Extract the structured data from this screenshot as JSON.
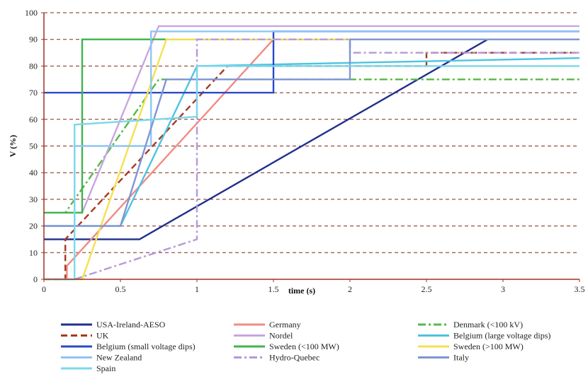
{
  "chart_data": {
    "type": "line",
    "title": "",
    "xlabel": "time (s)",
    "ylabel": "V (%)",
    "xlim": [
      0,
      3.5
    ],
    "ylim": [
      0,
      100
    ],
    "x_ticks": [
      0,
      0.5,
      1,
      1.5,
      2,
      2.5,
      3,
      3.5
    ],
    "x_tick_labels": [
      "0",
      "0.5",
      "1",
      "1.5",
      "2",
      "2.5",
      "3",
      "3.5"
    ],
    "y_ticks": [
      0,
      10,
      20,
      30,
      40,
      50,
      60,
      70,
      80,
      90,
      100
    ],
    "y_tick_labels": [
      "0",
      "10",
      "20",
      "30",
      "40",
      "50",
      "60",
      "70",
      "80",
      "90",
      "100"
    ],
    "grid": "horizontal dashed",
    "legend_position": "bottom",
    "series": [
      {
        "name": "USA-Ireland-AESO",
        "color": "#1f2f8c",
        "dash": "solid",
        "points": [
          [
            0,
            15
          ],
          [
            0.625,
            15
          ],
          [
            2.9,
            90
          ],
          [
            3.5,
            90
          ]
        ]
      },
      {
        "name": "Germany",
        "color": "#f28b82",
        "dash": "solid",
        "points": [
          [
            0.15,
            0
          ],
          [
            0.15,
            5
          ],
          [
            1.5,
            90
          ],
          [
            3.5,
            90
          ]
        ]
      },
      {
        "name": "Denmark (<100 kV)",
        "color": "#54b948",
        "dash": "dashdot",
        "points": [
          [
            0,
            25
          ],
          [
            0.14,
            25
          ],
          [
            0.75,
            75
          ],
          [
            3.5,
            75
          ]
        ]
      },
      {
        "name": "UK",
        "color": "#a63a1f",
        "dash": "dash",
        "points": [
          [
            0,
            0
          ],
          [
            0.14,
            0
          ],
          [
            0.14,
            15
          ],
          [
            1.2,
            80
          ],
          [
            2.5,
            80
          ],
          [
            2.5,
            85
          ],
          [
            3.5,
            85
          ]
        ]
      },
      {
        "name": "Nordel",
        "color": "#c8a6e0",
        "dash": "solid",
        "points": [
          [
            0,
            25
          ],
          [
            0.25,
            25
          ],
          [
            0.75,
            95
          ],
          [
            3.5,
            95
          ]
        ]
      },
      {
        "name": "Belgium (large voltage dips)",
        "color": "#4fc3e0",
        "dash": "solid",
        "points": [
          [
            0,
            20
          ],
          [
            0.5,
            20
          ],
          [
            1,
            80
          ],
          [
            3.5,
            83
          ]
        ]
      },
      {
        "name": "Belgium (small voltage dips)",
        "color": "#2a48c8",
        "dash": "solid",
        "points": [
          [
            0,
            70
          ],
          [
            1.5,
            70
          ],
          [
            1.5,
            93
          ],
          [
            3.5,
            93
          ]
        ]
      },
      {
        "name": "Sweden (<100 MW)",
        "color": "#3fb34f",
        "dash": "solid",
        "points": [
          [
            0,
            25
          ],
          [
            0.25,
            25
          ],
          [
            0.25,
            90
          ],
          [
            3.5,
            90
          ]
        ]
      },
      {
        "name": "Sweden (>100 MW)",
        "color": "#f5e050",
        "dash": "solid",
        "points": [
          [
            0,
            0
          ],
          [
            0.25,
            0
          ],
          [
            0.8,
            90
          ],
          [
            3.5,
            90
          ]
        ]
      },
      {
        "name": "New Zealand",
        "color": "#8ec6f2",
        "dash": "solid",
        "points": [
          [
            0,
            20
          ],
          [
            0.2,
            20
          ],
          [
            0.2,
            50
          ],
          [
            0.7,
            50
          ],
          [
            0.7,
            93
          ],
          [
            3.5,
            93
          ]
        ]
      },
      {
        "name": "Hydro-Quebec",
        "color": "#b49ad8",
        "dash": "dashdot",
        "points": [
          [
            0.2,
            0
          ],
          [
            1,
            15
          ],
          [
            1,
            90
          ],
          [
            2,
            90
          ],
          [
            2,
            85
          ],
          [
            3.5,
            85
          ]
        ]
      },
      {
        "name": "Italy",
        "color": "#7f95d4",
        "dash": "solid",
        "points": [
          [
            0,
            20
          ],
          [
            0.5,
            20
          ],
          [
            0.8,
            75
          ],
          [
            2,
            75
          ],
          [
            2,
            90
          ],
          [
            3.5,
            90
          ]
        ]
      },
      {
        "name": "Spain",
        "color": "#7dd8ea",
        "dash": "solid",
        "points": [
          [
            0,
            0
          ],
          [
            0.2,
            0
          ],
          [
            0.2,
            58
          ],
          [
            1,
            61
          ],
          [
            1,
            80
          ],
          [
            3.5,
            80
          ]
        ]
      }
    ]
  }
}
